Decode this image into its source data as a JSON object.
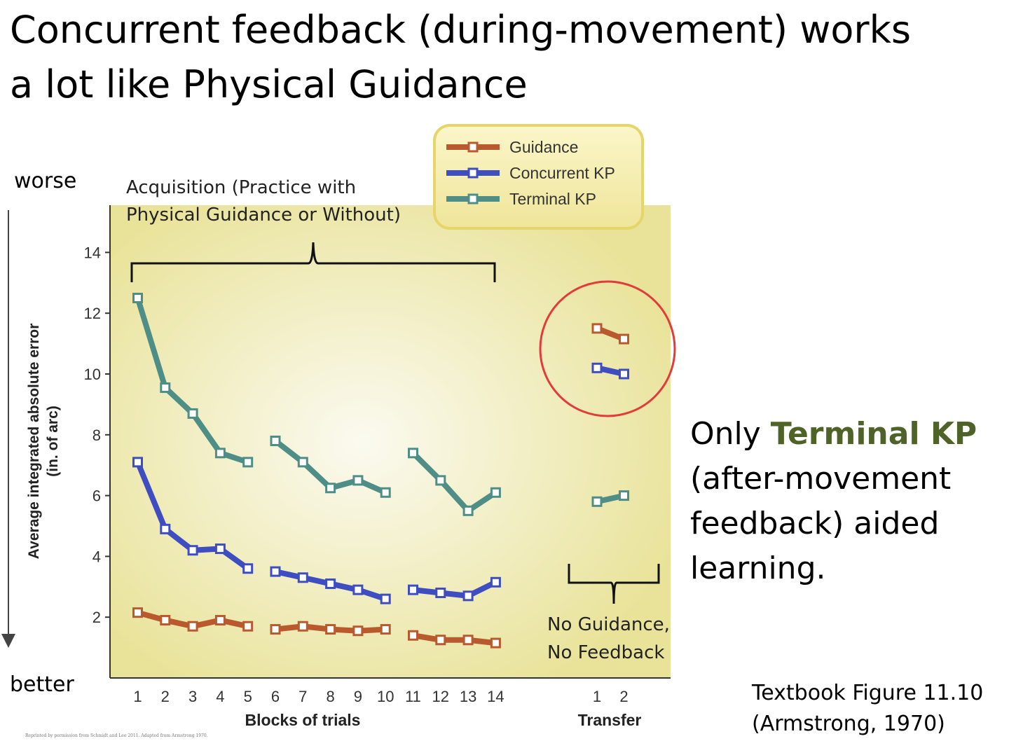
{
  "slide": {
    "title_line1": "Concurrent feedback (during-movement) works",
    "title_line2": "a lot like Physical Guidance",
    "note_part1": "Only ",
    "note_highlight": "Terminal KP",
    "note_part2": " (after-movement feedback) aided learning.",
    "source_line1": "Textbook Figure 11.10",
    "source_line2": "(Armstrong, 1970)",
    "fine_print": "Reprinted by permission from Schmidt and Lee 2011. Adapted from Armstrong 1970."
  },
  "chart_data": {
    "type": "line",
    "ylabel_line1": "Average integrated absolute error",
    "ylabel_line2": "(in. of arc)",
    "xlabel": "Blocks of trials",
    "xlabel_transfer": "Transfer",
    "ylim": [
      0,
      15
    ],
    "yticks": [
      2,
      4,
      6,
      8,
      10,
      12,
      14
    ],
    "x_acquisition": [
      1,
      2,
      3,
      4,
      5,
      6,
      7,
      8,
      9,
      10,
      11,
      12,
      13,
      14
    ],
    "x_transfer": [
      1,
      2
    ],
    "segments": [
      [
        1,
        5
      ],
      [
        6,
        10
      ],
      [
        11,
        14
      ]
    ],
    "grid": false,
    "legend_position": "top-right",
    "annotations": {
      "worse": "worse",
      "better": "better",
      "acquisition_line1": "Acquisition (Practice with",
      "acquisition_line2": "Physical Guidance or Without)",
      "transfer_line1": "No Guidance,",
      "transfer_line2": "No Feedback"
    },
    "series": [
      {
        "name": "Guidance",
        "color": "#b85a2e",
        "values": [
          2.15,
          1.9,
          1.7,
          1.9,
          1.7,
          1.6,
          1.7,
          1.6,
          1.55,
          1.6,
          1.4,
          1.25,
          1.25,
          1.15
        ],
        "transfer": [
          11.5,
          11.15
        ]
      },
      {
        "name": "Concurrent KP",
        "color": "#3e4dc0",
        "values": [
          7.1,
          4.9,
          4.2,
          4.25,
          3.6,
          3.5,
          3.3,
          3.1,
          2.9,
          2.6,
          2.9,
          2.8,
          2.7,
          3.15
        ],
        "transfer": [
          10.2,
          10.0
        ]
      },
      {
        "name": "Terminal KP",
        "color": "#4e8e86",
        "values": [
          12.5,
          9.55,
          8.7,
          7.4,
          7.1,
          7.8,
          7.1,
          6.25,
          6.5,
          6.1,
          7.4,
          6.5,
          5.5,
          6.1
        ],
        "transfer": [
          5.8,
          6.0
        ]
      }
    ],
    "highlight_color": "#e23b3b",
    "plot_bg": "#ece7a4"
  }
}
